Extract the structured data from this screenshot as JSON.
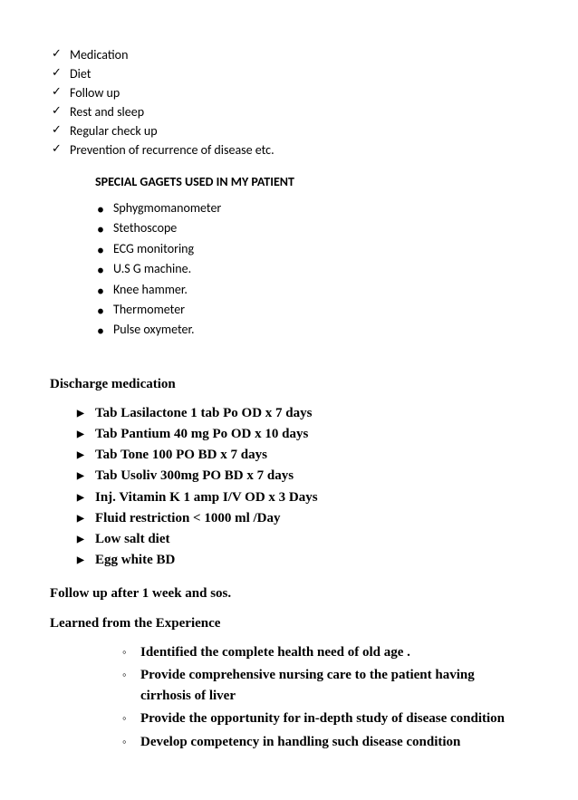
{
  "checkItems": [
    "Medication",
    "Diet",
    "Follow up",
    "Rest and sleep",
    "Regular check up",
    "Prevention of recurrence of disease etc."
  ],
  "gadgetsHeading": "SPECIAL  GAGETS USED IN MY PATIENT",
  "gadgets": [
    " Sphygmomanometer",
    "Stethoscope",
    "ECG monitoring",
    "U.S G machine.",
    "Knee hammer.",
    "Thermometer",
    "Pulse oxymeter."
  ],
  "dischargeHeading": "Discharge medication",
  "dischargeItems": [
    "Tab Lasilactone 1 tab Po OD x 7 days",
    "Tab Pantium 40 mg Po OD x 10  days",
    "Tab Tone 100 PO BD x 7 days",
    "Tab Usoliv 300mg  PO BD x 7 days",
    "Inj. Vitamin K 1 amp I/V OD x 3 Days",
    "Fluid restriction < 1000 ml /Day",
    "Low salt diet",
    "Egg white BD"
  ],
  "followupText": "Follow up after 1 week and sos.",
  "learnedHeading": "Learned from the Experience",
  "learnedItems": [
    "Identified the complete health need of old age .",
    "Provide comprehensive nursing care to the patient having cirrhosis of liver",
    "Provide the opportunity  for  in-depth study of disease condition",
    "Develop competency in handling such disease condition"
  ]
}
